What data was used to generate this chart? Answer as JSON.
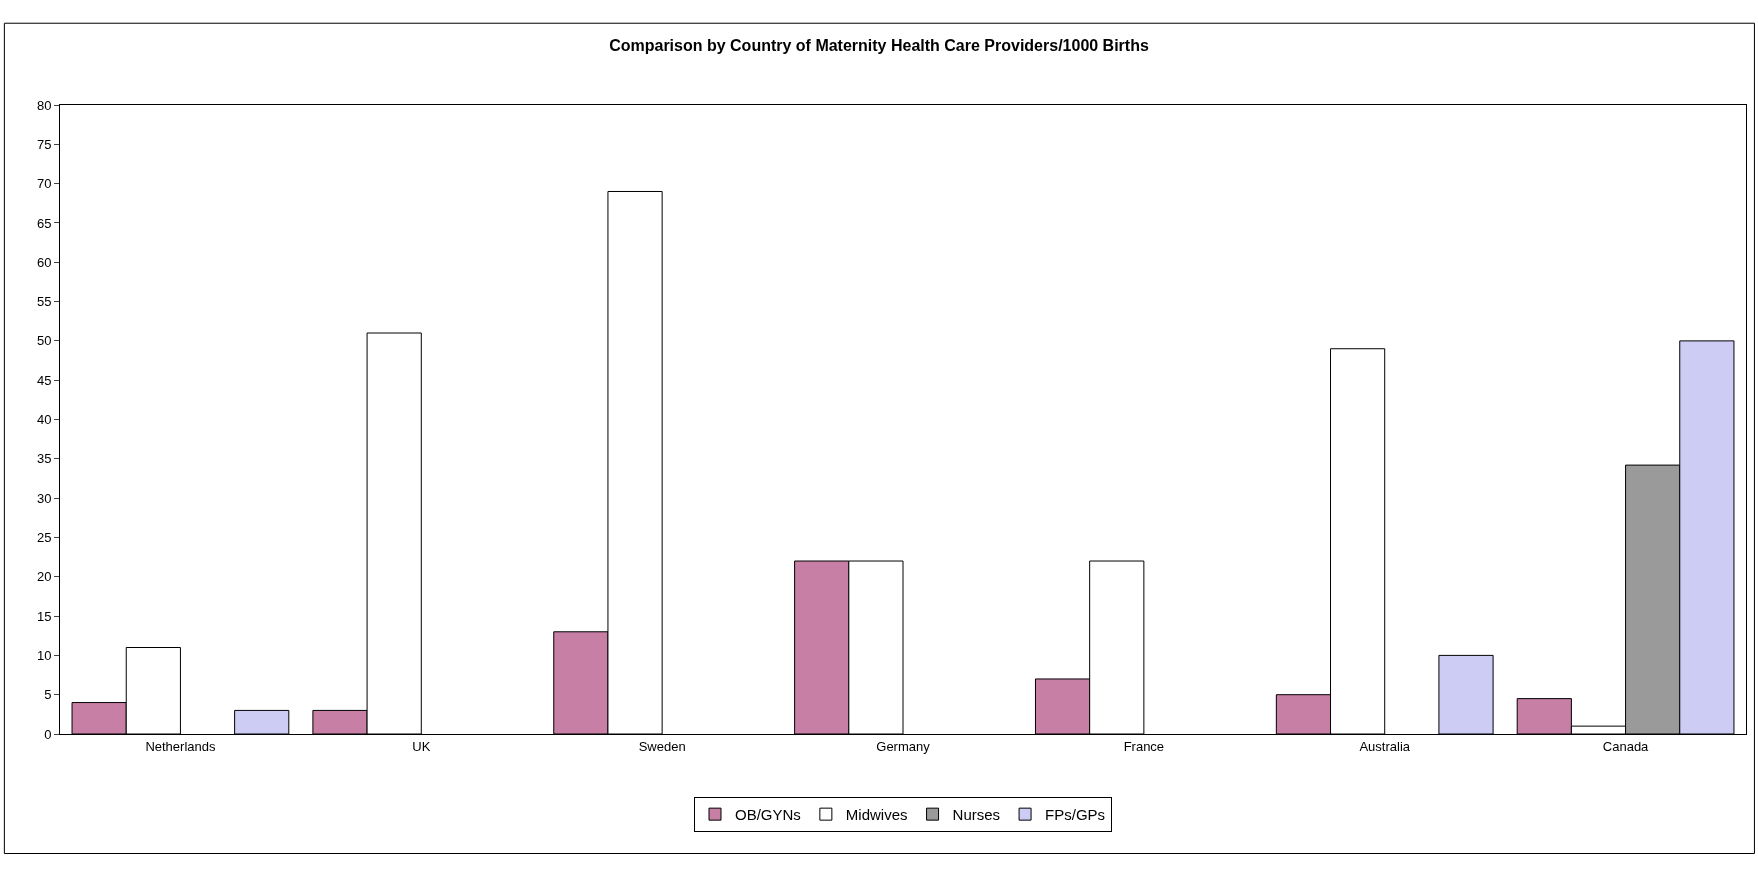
{
  "chart_data": {
    "type": "bar",
    "title": "Comparison by Country of Maternity Health Care Providers/1000 Births",
    "categories": [
      "Netherlands",
      "UK",
      "Sweden",
      "Germany",
      "France",
      "Australia",
      "Canada"
    ],
    "series": [
      {
        "name": "OB/GYNs",
        "color": "#c77fa6",
        "values": [
          4,
          3,
          13,
          22,
          7,
          5,
          4.5
        ]
      },
      {
        "name": "Midwives",
        "color": "#ffffff",
        "values": [
          11,
          51,
          69,
          22,
          22,
          49,
          1
        ]
      },
      {
        "name": "Nurses",
        "color": "#9a9a9a",
        "values": [
          null,
          null,
          null,
          null,
          null,
          null,
          34.2
        ]
      },
      {
        "name": "FPs/GPs",
        "color": "#ccccf5",
        "values": [
          3,
          null,
          null,
          null,
          null,
          10,
          50
        ]
      }
    ],
    "ylim": [
      0,
      80
    ],
    "yticks": [
      0,
      5,
      10,
      15,
      20,
      25,
      30,
      35,
      40,
      45,
      50,
      55,
      60,
      65,
      70,
      75,
      80
    ],
    "grid": false,
    "legend": "bottom"
  }
}
